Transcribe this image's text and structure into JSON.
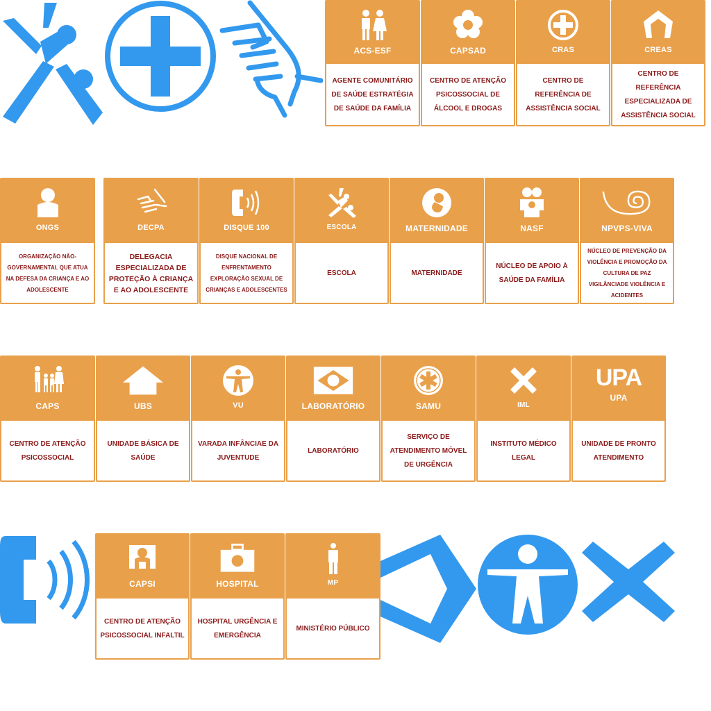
{
  "colors": {
    "card_header": "#e9a04a",
    "card_text": "#8b1a1a",
    "big_icon": "#3399ee",
    "white": "#ffffff"
  },
  "big_icons": {
    "row1": [
      "escola-figure-icon",
      "cross-circle-icon",
      "handshake-icon"
    ],
    "row4": [
      "telephone-icon",
      "frame-icon",
      "person-circle-icon",
      "x-icon"
    ]
  },
  "rows": [
    [
      {
        "icon": "couple-icon",
        "code": "ACS-ESF",
        "desc": "AGENTE COMUNITÁRIO DE SAÚDE ESTRATÉGIA DE SAÚDE DA FAMÍLIA"
      },
      {
        "icon": "flower-icon",
        "code": "CAPSAD",
        "desc": "CENTRO DE ATENÇÃO PSICOSSOCIAL DE ÁLCOOL E DROGAS"
      },
      {
        "icon": "cross-circle-icon",
        "code": "CRAS",
        "desc": "CENTRO DE REFERÊNCIA DE ASSISTÊNCIA SOCIAL"
      },
      {
        "icon": "house-frame-icon",
        "code": "CREAS",
        "desc": "CENTRO DE REFERÊNCIA ESPECIALIZADA DE ASSISTÊNCIA SOCIAL"
      }
    ],
    [
      {
        "icon": "person-icon",
        "code": "ONGS",
        "desc": "ORGANIZAÇÃO NÃO-GOVERNAMENTAL QUE ATUA NA DEFESA DA CRIANÇA E AO ADOLESCENTE"
      },
      {
        "icon": "handshake-icon",
        "code": "DECPA",
        "desc": "DELEGACIA ESPECIALIZADA DE PROTEÇÃO À CRIANÇA E AO ADOLESCENTE"
      },
      {
        "icon": "telephone-icon",
        "code": "DISQUE 100",
        "desc": "DISQUE NACIONAL DE ENFRENTAMENTO EXPLORAÇÃO SEXUAL DE CRIANÇAS E ADOLESCENTES"
      },
      {
        "icon": "escola-figure-icon",
        "code": "ESCOLA",
        "desc": "ESCOLA"
      },
      {
        "icon": "fetus-icon",
        "code": "MATERNIDADE",
        "desc": "MATERNIDADE"
      },
      {
        "icon": "family-icon",
        "code": "NASF",
        "desc": "NÚCLEO DE APOIO À SAÚDE DA FAMÍLIA"
      },
      {
        "icon": "spiral-icon",
        "code": "NPVPS-VIVA",
        "desc": "NÚCLEO DE PREVENÇÃO DA VIOLÊNCIA E PROMOÇÃO DA CULTURA DE PAZ VIGILÂNCIADE VIOLÊNCIA E ACIDENTES"
      }
    ],
    [
      {
        "icon": "family-group-icon",
        "code": "CAPS",
        "desc": "CENTRO DE ATENÇÃO PSICOSSOCIAL"
      },
      {
        "icon": "house-icon",
        "code": "UBS",
        "desc": "UNIDADE BÁSICA DE SAÚDE"
      },
      {
        "icon": "person-circle-icon",
        "code": "VU",
        "desc": "VARADA INFÂNCIAE DA JUVENTUDE"
      },
      {
        "icon": "brazil-flag-icon",
        "code": "LABORATÓRIO",
        "desc": "LABORATÓRIO"
      },
      {
        "icon": "star-of-life-icon",
        "code": "SAMU",
        "desc": "SERVIÇO DE ATENDIMENTO MÓVEL DE URGÊNCIA"
      },
      {
        "icon": "x-icon",
        "code": "IML",
        "desc": "INSTITUTO MÉDICO LEGAL"
      },
      {
        "icon": "upa-logo-icon",
        "code": "UPA",
        "desc": "UNIDADE DE PRONTO ATENDIMENTO",
        "logo_text": "UPA"
      }
    ],
    [
      {
        "icon": "capsi-icon",
        "code": "CAPSI",
        "desc": "CENTRO DE ATENÇÃO PSICOSSOCIAL INFALTIL"
      },
      {
        "icon": "medical-bag-icon",
        "code": "HOSPITAL",
        "desc": "HOSPITAL URGÊNCIA E EMERGÊNCIA"
      },
      {
        "icon": "standing-person-icon",
        "code": "MP",
        "desc": "MINISTÉRIO PÚBLICO"
      }
    ]
  ]
}
